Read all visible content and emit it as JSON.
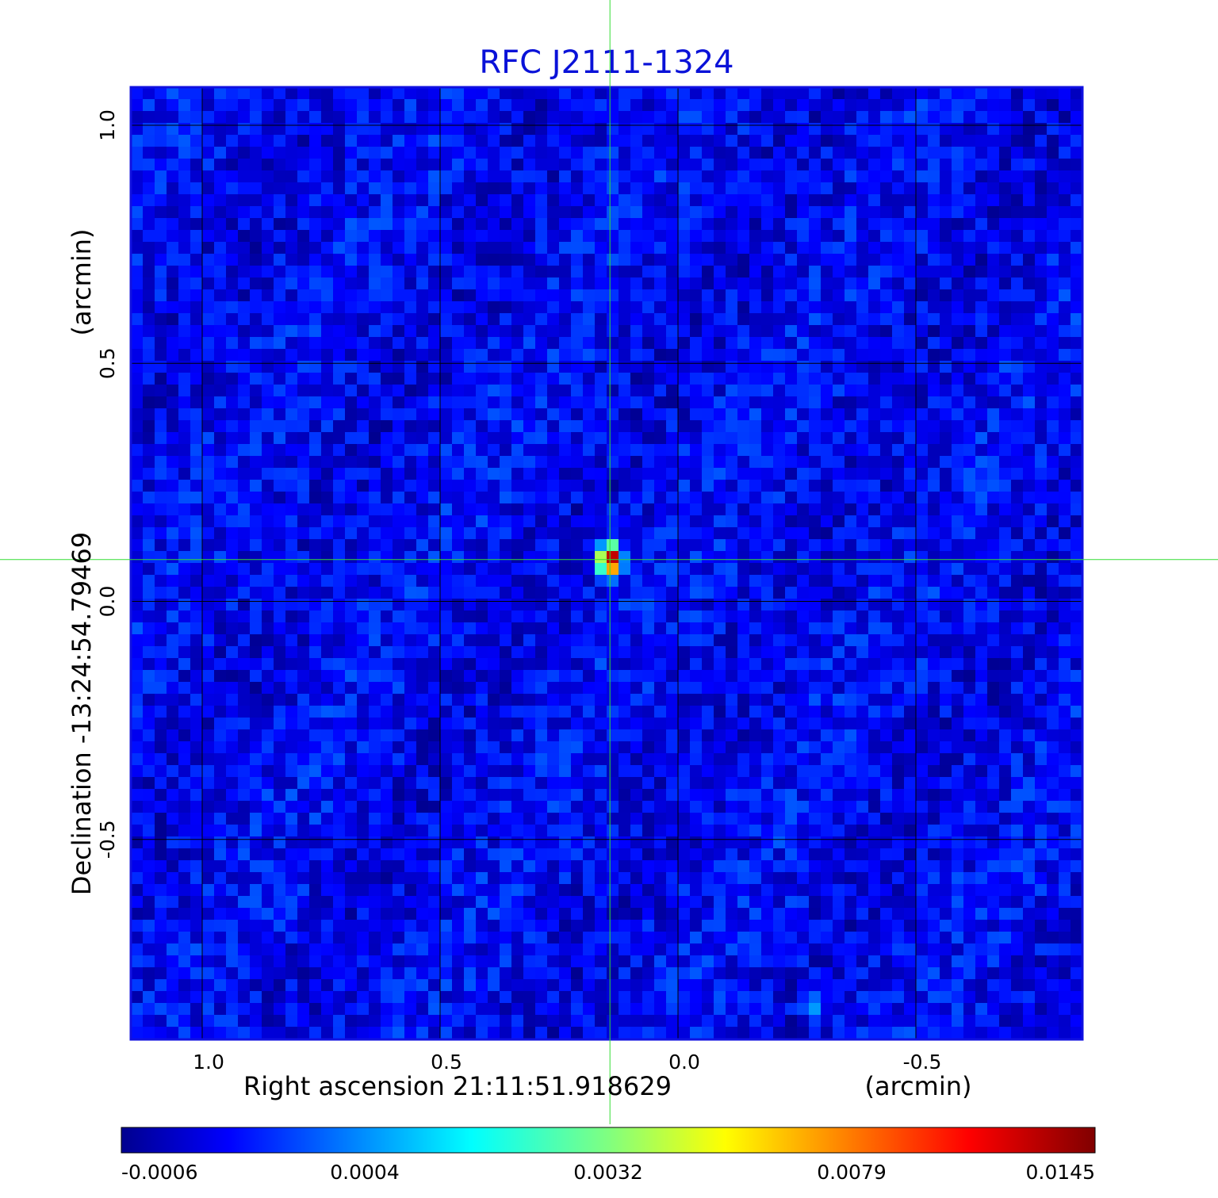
{
  "chart_data": {
    "type": "heatmap",
    "title": "RFC J2111-1324",
    "xlabel": "Right ascension  21:11:51.918629",
    "xunit": "(arcmin)",
    "ylabel": "Declination  -13:24:54.79469",
    "yunit": "(arcmin)",
    "xlim": [
      1.15,
      -0.85
    ],
    "ylim": [
      -0.92,
      1.08
    ],
    "x_ticks": [
      {
        "value": 1.0,
        "label": "1.0"
      },
      {
        "value": 0.5,
        "label": "0.5"
      },
      {
        "value": 0.0,
        "label": "0.0"
      },
      {
        "value": -0.5,
        "label": "-0.5"
      }
    ],
    "y_ticks": [
      {
        "value": 1.0,
        "label": "1.0"
      },
      {
        "value": 0.5,
        "label": "0.5"
      },
      {
        "value": 0.0,
        "label": "0.0"
      },
      {
        "value": -0.5,
        "label": "-0.5"
      }
    ],
    "grid": true,
    "crosshair": {
      "x": 0.143,
      "y": 0.088,
      "color": "#33dd33"
    },
    "colorbar": {
      "colormap": "jet",
      "tick_labels": [
        "-0.0006",
        "0.0004",
        "0.0032",
        "0.0079",
        "0.0145"
      ]
    },
    "features": [
      {
        "name": "compact source",
        "x": 0.143,
        "y": 0.088,
        "peak_level": 0.0145
      },
      {
        "name": "faint spot",
        "x": -0.285,
        "y": -0.85,
        "peak_level": 0.0006
      }
    ],
    "background_level": -0.0002,
    "border_color": "#1010e0"
  }
}
